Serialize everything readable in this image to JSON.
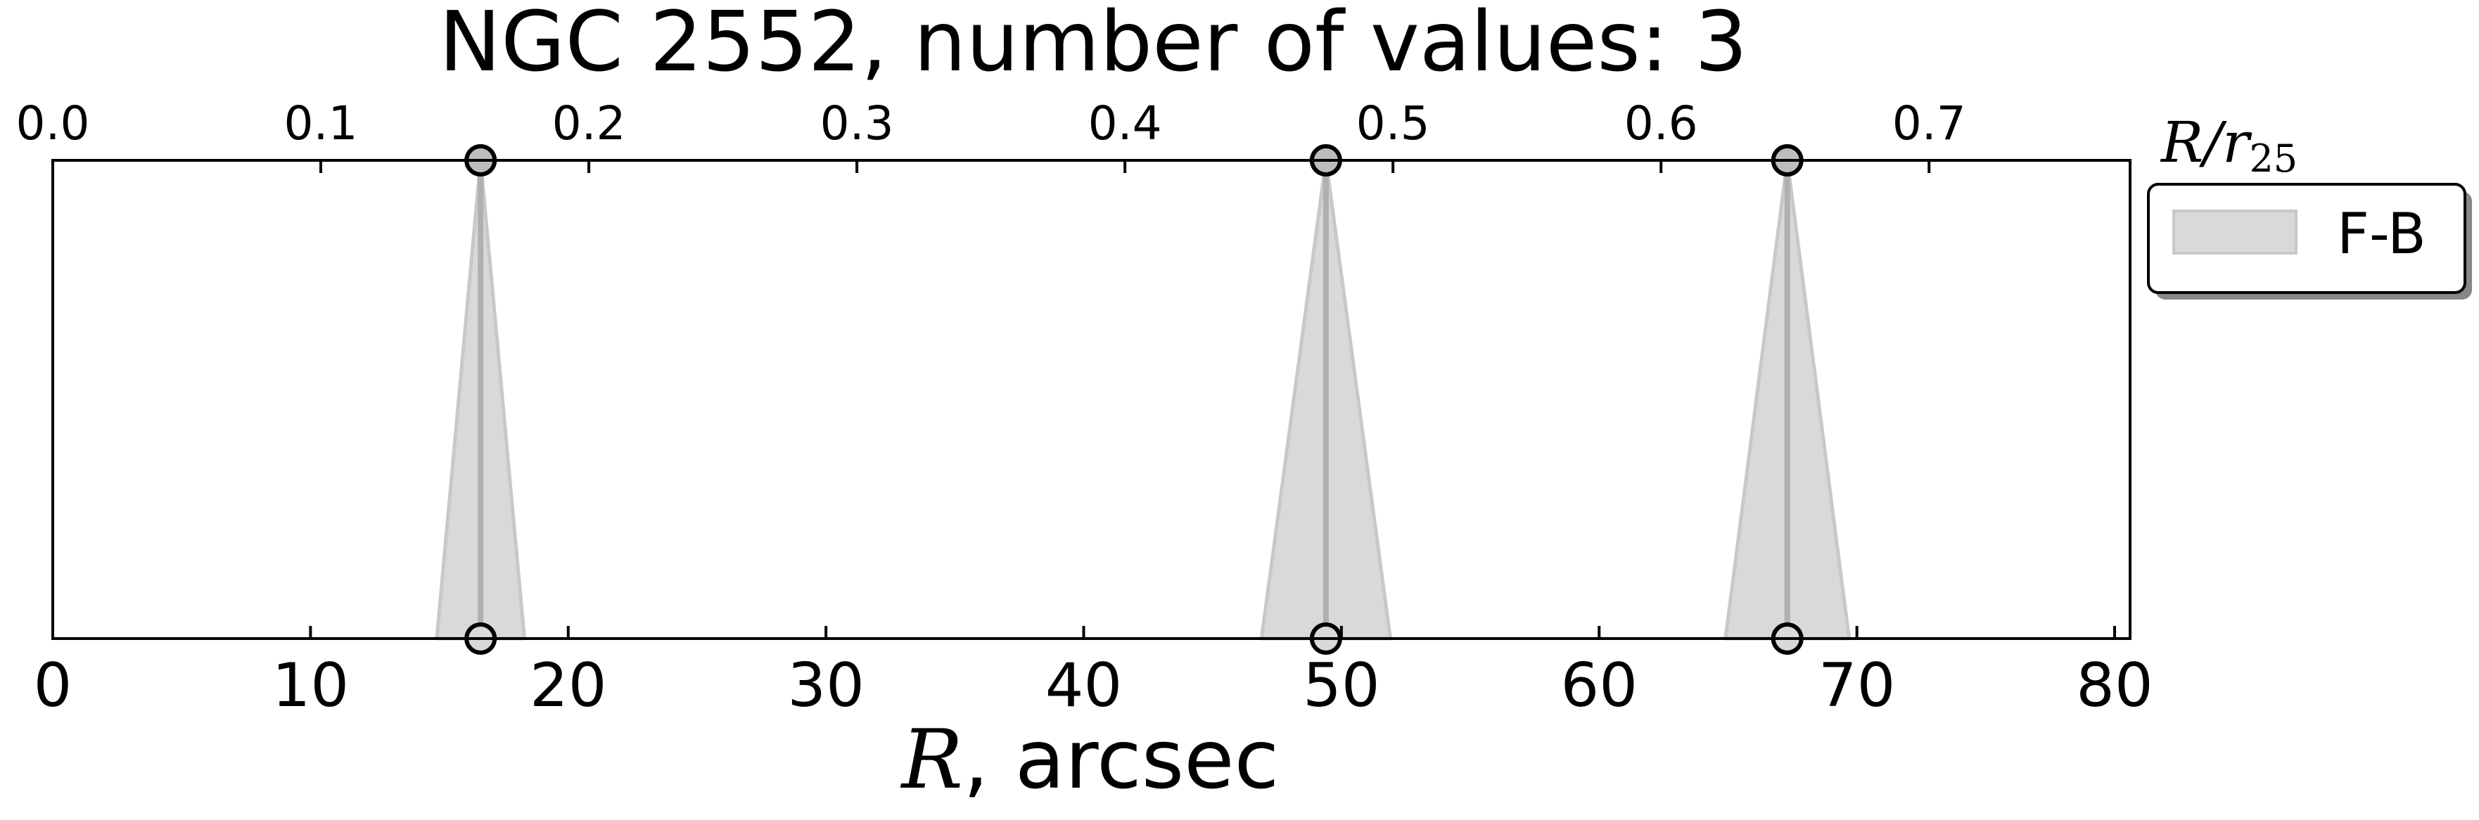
{
  "chart_data": {
    "type": "scatter",
    "title": "NGC 2552, number of values: 3",
    "xlabel_symbol": "R",
    "xlabel_rest": ", arcsec",
    "top_axis_label_symbol": "R/r",
    "top_axis_label_sub": "25",
    "xlim": [
      0,
      80.6
    ],
    "x_ticks": [
      "0",
      "10",
      "20",
      "30",
      "40",
      "50",
      "60",
      "70",
      "80"
    ],
    "x_tick_values": [
      0,
      10,
      20,
      30,
      40,
      50,
      60,
      70,
      80
    ],
    "top_xlim": [
      0,
      0.775
    ],
    "top_ticks": [
      "0.0",
      "0.1",
      "0.2",
      "0.3",
      "0.4",
      "0.5",
      "0.6",
      "0.7"
    ],
    "top_tick_values": [
      0,
      0.1,
      0.2,
      0.3,
      0.4,
      0.5,
      0.6,
      0.7
    ],
    "grid": false,
    "legend_position": "outside-right-top",
    "series": [
      {
        "name": "F-B",
        "color": "#c8c8c8",
        "fill": "#d9d9d9",
        "points": [
          {
            "x": 16.6,
            "x_low": 14.9,
            "x_high": 18.3
          },
          {
            "x": 49.4,
            "x_low": 46.9,
            "x_high": 51.9
          },
          {
            "x": 67.3,
            "x_low": 64.9,
            "x_high": 69.7
          }
        ]
      }
    ]
  }
}
